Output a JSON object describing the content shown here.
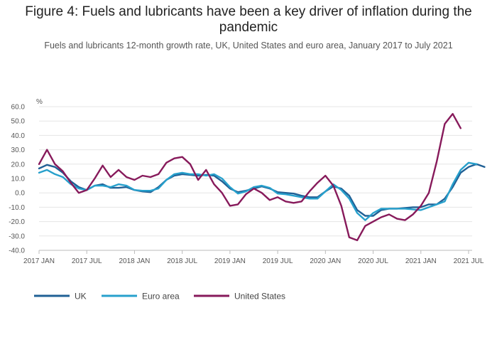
{
  "chart_data": {
    "type": "line",
    "title": "Figure 4: Fuels and lubricants have been a key driver of inflation during the pandemic",
    "subtitle": "Fuels and lubricants 12-month growth rate, UK, United States and euro area, January 2017 to July 2021",
    "ylabel": "%",
    "xlabel": "",
    "ylim": [
      -40,
      60
    ],
    "yticks": [
      "60.0",
      "50.0",
      "40.0",
      "30.0",
      "20.0",
      "10.0",
      "0.0",
      "-10.0",
      "-20.0",
      "-30.0",
      "-40.0"
    ],
    "xticks": [
      {
        "label": "2017 JAN",
        "index": 0
      },
      {
        "label": "2017 JUL",
        "index": 6
      },
      {
        "label": "2018 JAN",
        "index": 12
      },
      {
        "label": "2018 JUL",
        "index": 18
      },
      {
        "label": "2019 JAN",
        "index": 24
      },
      {
        "label": "2019 JUL",
        "index": 30
      },
      {
        "label": "2020 JAN",
        "index": 36
      },
      {
        "label": "2020 JUL",
        "index": 42
      },
      {
        "label": "2021 JAN",
        "index": 48
      },
      {
        "label": "2021 JUL",
        "index": 54
      }
    ],
    "grid": true,
    "legend_position": "bottom-left",
    "x_start": "2017-01",
    "series": [
      {
        "name": "UK",
        "color": "#206095",
        "values": [
          17,
          19.5,
          18,
          14,
          8,
          4,
          2,
          5,
          6,
          3.5,
          3.5,
          4,
          2,
          1,
          0.5,
          4,
          9,
          12,
          13,
          12.5,
          12,
          12.5,
          12,
          8,
          3,
          0.5,
          1.5,
          3,
          4.5,
          3,
          0.5,
          0,
          -0.5,
          -2,
          -3,
          -3,
          1,
          4.5,
          3,
          -2,
          -12,
          -16,
          -16,
          -12,
          -11,
          -11,
          -10.5,
          -10,
          -10,
          -8,
          -8,
          -4,
          4,
          14,
          18,
          20,
          18
        ]
      },
      {
        "name": "Euro area",
        "color": "#27a0cc",
        "values": [
          14,
          16,
          13,
          11,
          6,
          3,
          2,
          5,
          5,
          4,
          6,
          5,
          2,
          1.5,
          1.5,
          3,
          9,
          13,
          14,
          13,
          13,
          12,
          13,
          10,
          4,
          -0.5,
          1,
          4,
          5,
          3.5,
          -0.5,
          -1,
          -2,
          -3,
          -4,
          -4,
          1,
          6,
          2,
          -4,
          -14,
          -19,
          -14,
          -11,
          -11,
          -11,
          -11,
          -11.5,
          -12,
          -10,
          -8,
          -6,
          6,
          16,
          21,
          20
        ]
      },
      {
        "name": "United States",
        "color": "#871a5b",
        "values": [
          20,
          30,
          20,
          15,
          7,
          0,
          2,
          10,
          19,
          11,
          16,
          11,
          9,
          12,
          11,
          13,
          21,
          24,
          25,
          20,
          9,
          16,
          6,
          0,
          -9,
          -8,
          -1,
          3,
          0,
          -5,
          -3,
          -6,
          -7,
          -6,
          1,
          7,
          12,
          5,
          -9,
          -31,
          -33,
          -23,
          -20,
          -17,
          -15,
          -18,
          -19,
          -15,
          -9,
          0,
          22,
          48,
          55,
          45
        ]
      }
    ]
  }
}
